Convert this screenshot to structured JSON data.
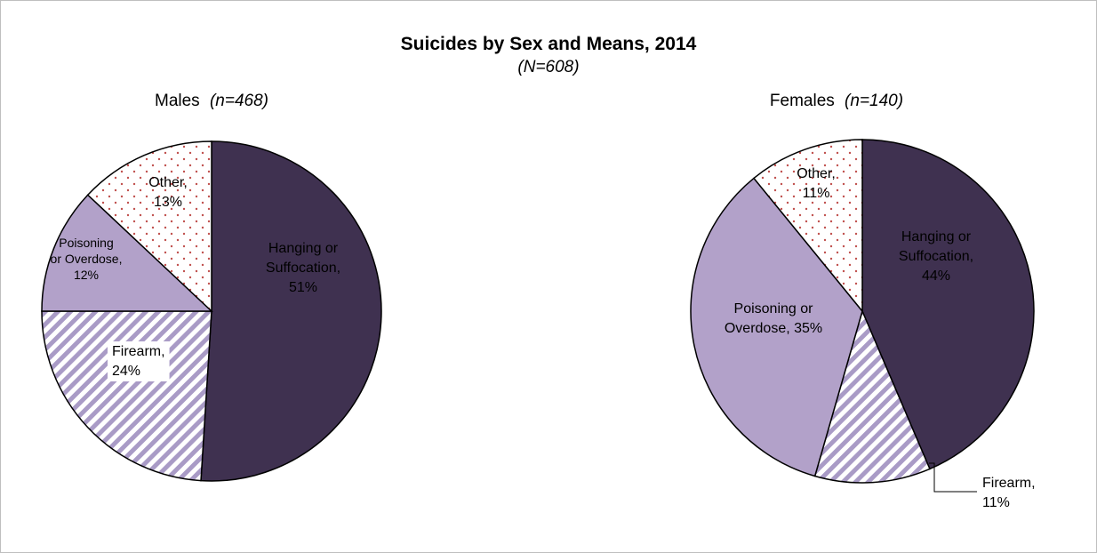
{
  "chart_data": {
    "type": "pie",
    "title": "Suicides by Sex and Means, 2014",
    "subtitle": "(N=608)",
    "pies": [
      {
        "name": "Males",
        "n_label": "(n=468)",
        "slices": [
          {
            "label_lines": [
              "Hanging or",
              "Suffocation,",
              "51%"
            ],
            "value": 51,
            "fill": "#3f3150",
            "pattern": "solid"
          },
          {
            "label_lines": [
              "Firearm,",
              "24%"
            ],
            "value": 24,
            "fill": "#a99bc6",
            "pattern": "diagonal-stripes"
          },
          {
            "label_lines": [
              "Poisoning",
              "or Overdose,",
              "12%"
            ],
            "value": 12,
            "fill": "#b2a1c9",
            "pattern": "solid"
          },
          {
            "label_lines": [
              "Other,",
              "13%"
            ],
            "value": 13,
            "fill": "#c0504d",
            "pattern": "dots"
          }
        ]
      },
      {
        "name": "Females",
        "n_label": "(n=140)",
        "slices": [
          {
            "label_lines": [
              "Hanging or",
              "Suffocation,",
              "44%"
            ],
            "value": 44,
            "fill": "#3f3150",
            "pattern": "solid"
          },
          {
            "label_lines": [
              "Firearm,",
              "11%"
            ],
            "value": 11,
            "fill": "#a99bc6",
            "pattern": "diagonal-stripes"
          },
          {
            "label_lines": [
              "Poisoning or",
              "Overdose, 35%"
            ],
            "value": 35,
            "fill": "#b2a1c9",
            "pattern": "solid"
          },
          {
            "label_lines": [
              "Other,",
              "11%"
            ],
            "value": 11,
            "fill": "#c0504d",
            "pattern": "dots"
          }
        ]
      }
    ]
  },
  "colors": {
    "hanging": "#3f3150",
    "firearm_stripe": "#a99bc6",
    "poisoning": "#b2a1c9",
    "other_dots": "#c0504d",
    "outline": "#000000",
    "frame": "#bfbfbf"
  }
}
